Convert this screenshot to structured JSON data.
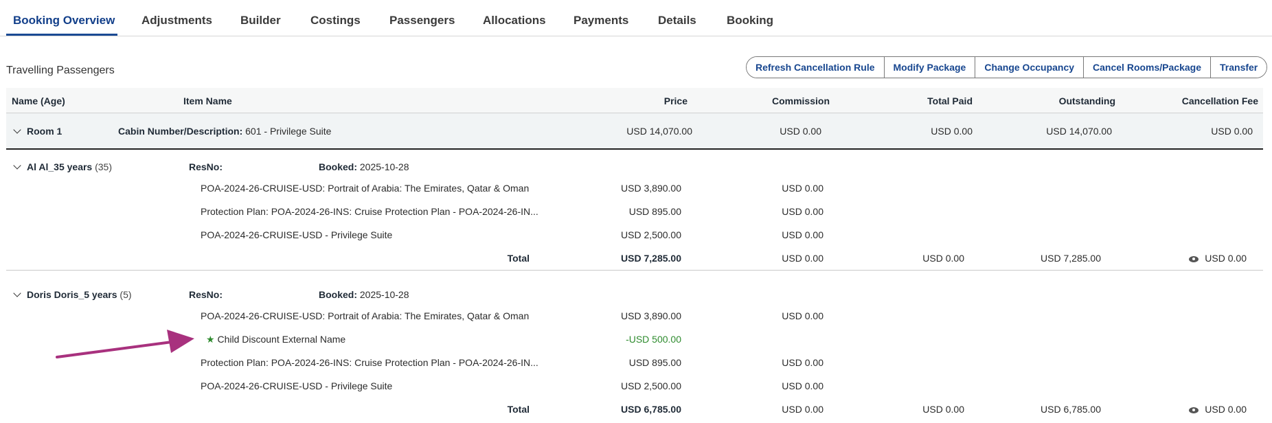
{
  "tabs": [
    "Booking Overview",
    "Adjustments",
    "Builder",
    "Costings",
    "Passengers",
    "Allocations",
    "Payments",
    "Details",
    "Booking"
  ],
  "active_tab": "Booking Overview",
  "section_title": "Travelling Passengers",
  "actions": [
    "Refresh Cancellation Rule",
    "Modify Package",
    "Change Occupancy",
    "Cancel Rooms/Package",
    "Transfer"
  ],
  "columns": [
    "Name (Age)",
    "Item Name",
    "Price",
    "Commission",
    "Total Paid",
    "Outstanding",
    "Cancellation Fee"
  ],
  "room": {
    "name": "Room 1",
    "cabin_label": "Cabin Number/Description:",
    "cabin_value": "601 - Privilege Suite",
    "price": "USD 14,070.00",
    "commission": "USD 0.00",
    "total_paid": "USD 0.00",
    "outstanding": "USD 14,070.00",
    "cancellation_fee": "USD 0.00"
  },
  "labels": {
    "resno": "ResNo:",
    "booked": "Booked:",
    "total": "Total"
  },
  "passengers": [
    {
      "name": "Al Al_35 years",
      "age": "(35)",
      "booked": "2025-10-28",
      "items": [
        {
          "name": "POA-2024-26-CRUISE-USD: Portrait of Arabia: The Emirates, Qatar & Oman",
          "price": "USD 3,890.00",
          "commission": "USD 0.00"
        },
        {
          "name": "Protection Plan: POA-2024-26-INS: Cruise Protection Plan - POA-2024-26-IN...",
          "price": "USD 895.00",
          "commission": "USD 0.00"
        },
        {
          "name": "POA-2024-26-CRUISE-USD - Privilege Suite",
          "price": "USD 2,500.00",
          "commission": "USD 0.00"
        }
      ],
      "total": {
        "price": "USD 7,285.00",
        "commission": "USD 0.00",
        "total_paid": "USD 0.00",
        "outstanding": "USD 7,285.00",
        "cancellation_fee": "USD 0.00"
      }
    },
    {
      "name": "Doris Doris_5 years",
      "age": "(5)",
      "booked": "2025-10-28",
      "items": [
        {
          "name": "POA-2024-26-CRUISE-USD: Portrait of Arabia: The Emirates, Qatar & Oman",
          "price": "USD 3,890.00",
          "commission": "USD 0.00"
        },
        {
          "name": "Child Discount External Name",
          "price": "-USD 500.00",
          "discount": true,
          "icon": "star-icon"
        },
        {
          "name": "Protection Plan: POA-2024-26-INS: Cruise Protection Plan - POA-2024-26-IN...",
          "price": "USD 895.00",
          "commission": "USD 0.00"
        },
        {
          "name": "POA-2024-26-CRUISE-USD - Privilege Suite",
          "price": "USD 2,500.00",
          "commission": "USD 0.00"
        }
      ],
      "total": {
        "price": "USD 6,785.00",
        "commission": "USD 0.00",
        "total_paid": "USD 0.00",
        "outstanding": "USD 6,785.00",
        "cancellation_fee": "USD 0.00"
      }
    }
  ],
  "colors": {
    "accent": "#1a4a94",
    "discount": "#2e8b2e",
    "annotation_arrow": "#a8317e"
  }
}
